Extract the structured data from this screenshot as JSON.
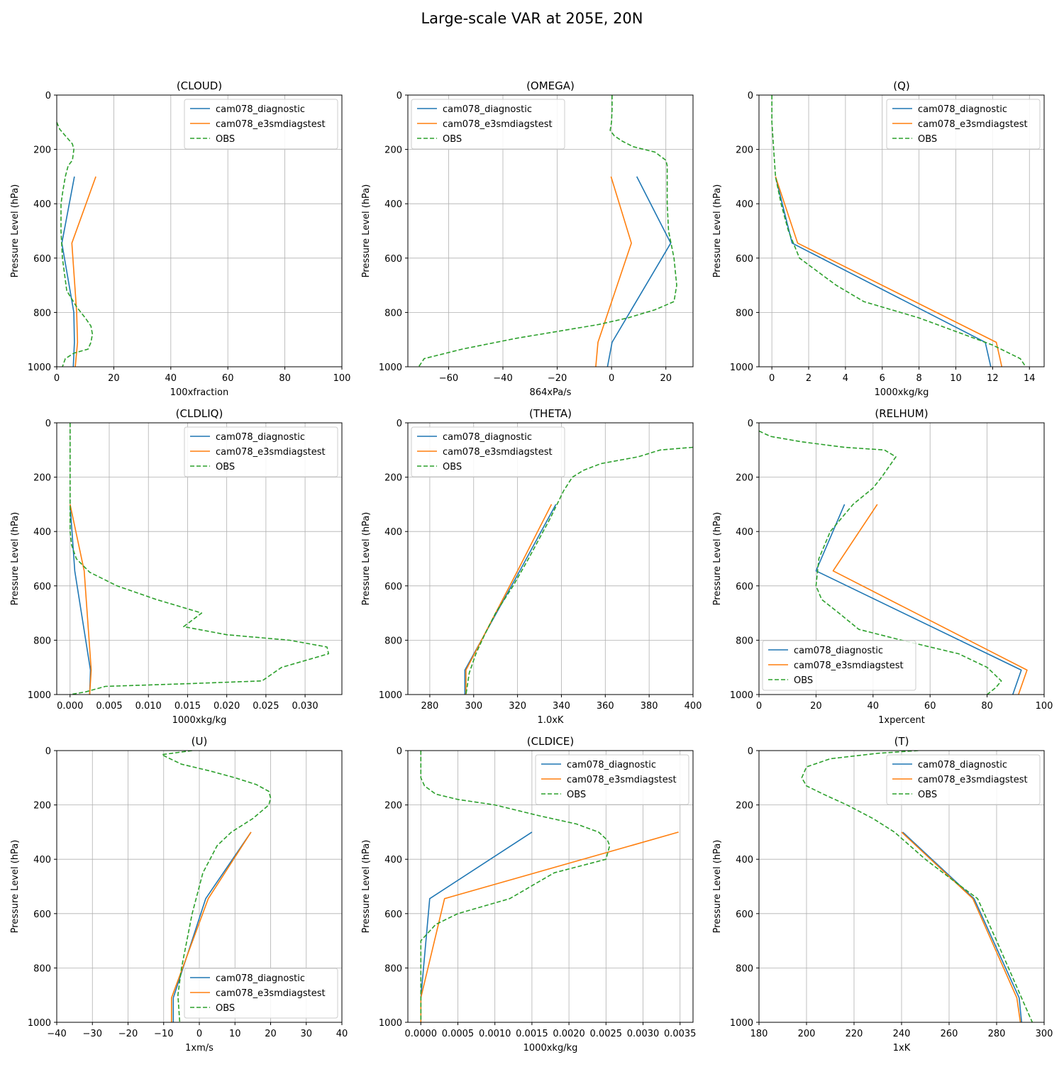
{
  "figure": {
    "title": "Large-scale VAR at 205E, 20N"
  },
  "colors": {
    "model1": "#1f77b4",
    "model2": "#ff7f0e",
    "obs": "#2ca02c",
    "grid": "#b0b0b0"
  },
  "chart_data": [
    {
      "type": "line",
      "title": "(CLOUD)",
      "xlabel": "100xfraction",
      "ylabel": "Pressure Level (hPa)",
      "xlim": [
        0,
        100
      ],
      "ylim": [
        1000,
        0
      ],
      "xticks": [
        0,
        20,
        40,
        60,
        80,
        100
      ],
      "yticks": [
        0,
        200,
        400,
        600,
        800,
        1000
      ],
      "grid": true,
      "legend": "top-right",
      "series": [
        {
          "name": "cam078_diagnostic",
          "style": "solid",
          "x": [
            6.2,
            1.8,
            6,
            6.2,
            5.8
          ],
          "y": [
            300,
            545,
            800,
            910,
            1000
          ]
        },
        {
          "name": "cam078_e3smdiagstest",
          "style": "solid",
          "x": [
            13.7,
            5.3,
            7,
            7.3,
            6.5
          ],
          "y": [
            300,
            545,
            800,
            910,
            1000
          ]
        },
        {
          "name": "OBS",
          "style": "dashed",
          "x": [
            0,
            1,
            3,
            5.5,
            6,
            5.5,
            4,
            3,
            2.2,
            1.5,
            1.5,
            2,
            3.5,
            7,
            10,
            12,
            12.5,
            12,
            11,
            6,
            3,
            2
          ],
          "y": [
            100,
            125,
            150,
            180,
            200,
            240,
            260,
            300,
            350,
            400,
            500,
            600,
            720,
            780,
            820,
            850,
            880,
            910,
            935,
            950,
            970,
            1000
          ]
        }
      ]
    },
    {
      "type": "line",
      "title": "(OMEGA)",
      "xlabel": "864xPa/s",
      "ylabel": "Pressure Level (hPa)",
      "xlim": [
        -75,
        30
      ],
      "ylim": [
        1000,
        0
      ],
      "xticks": [
        -60,
        -40,
        -20,
        0,
        20
      ],
      "yticks": [
        0,
        200,
        400,
        600,
        800,
        1000
      ],
      "grid": true,
      "legend": "top-left",
      "series": [
        {
          "name": "cam078_diagnostic",
          "style": "solid",
          "x": [
            9.3,
            21.8,
            0.2,
            -1.5
          ],
          "y": [
            300,
            545,
            910,
            1000
          ]
        },
        {
          "name": "cam078_e3smdiagstest",
          "style": "solid",
          "x": [
            -0.2,
            7.3,
            -5,
            -5.8
          ],
          "y": [
            300,
            545,
            910,
            1000
          ]
        },
        {
          "name": "OBS",
          "style": "dashed",
          "x": [
            0.2,
            0.2,
            0,
            -0.5,
            1,
            4,
            8,
            16,
            20,
            20.5,
            20.5,
            20.5,
            21,
            23,
            24,
            23,
            16,
            6,
            -5,
            -20,
            -35,
            -55,
            -69,
            -71
          ],
          "y": [
            0,
            50,
            100,
            130,
            150,
            170,
            190,
            210,
            240,
            260,
            300,
            400,
            500,
            600,
            700,
            760,
            790,
            820,
            845,
            870,
            895,
            935,
            970,
            1000
          ]
        }
      ]
    },
    {
      "type": "line",
      "title": "(Q)",
      "xlabel": "1000xkg/kg",
      "ylabel": "Pressure Level (hPa)",
      "xlim": [
        -0.7,
        14.8
      ],
      "ylim": [
        1000,
        0
      ],
      "xticks": [
        0,
        2,
        4,
        6,
        8,
        10,
        12,
        14
      ],
      "yticks": [
        0,
        200,
        400,
        600,
        800,
        1000
      ],
      "grid": true,
      "legend": "top-right",
      "series": [
        {
          "name": "cam078_diagnostic",
          "style": "solid",
          "x": [
            0.2,
            1.1,
            11.6,
            11.9
          ],
          "y": [
            300,
            545,
            910,
            1000
          ]
        },
        {
          "name": "cam078_e3smdiagstest",
          "style": "solid",
          "x": [
            0.2,
            1.4,
            12.2,
            12.5
          ],
          "y": [
            300,
            545,
            910,
            1000
          ]
        },
        {
          "name": "OBS",
          "style": "dashed",
          "x": [
            0,
            0,
            0.1,
            0.2,
            0.5,
            0.9,
            1.5,
            2.5,
            3.5,
            5,
            8,
            10,
            12,
            13.5,
            13.8
          ],
          "y": [
            0,
            100,
            200,
            300,
            400,
            500,
            600,
            650,
            700,
            760,
            820,
            870,
            920,
            970,
            1000
          ]
        }
      ]
    },
    {
      "type": "line",
      "title": "(CLDLIQ)",
      "xlabel": "1000xkg/kg",
      "ylabel": "Pressure Level (hPa)",
      "xlim": [
        -0.0017,
        0.0347
      ],
      "ylim": [
        1000,
        0
      ],
      "xticks": [
        0,
        0.005,
        0.01,
        0.015,
        0.02,
        0.025,
        0.03
      ],
      "xticklabels": [
        "0.000",
        "0.005",
        "0.010",
        "0.015",
        "0.020",
        "0.025",
        "0.030"
      ],
      "yticks": [
        0,
        200,
        400,
        600,
        800,
        1000
      ],
      "grid": true,
      "legend": "top-right",
      "series": [
        {
          "name": "cam078_diagnostic",
          "style": "solid",
          "x": [
            0,
            0.0006,
            0.0026,
            0.0025
          ],
          "y": [
            300,
            545,
            910,
            1000
          ]
        },
        {
          "name": "cam078_e3smdiagstest",
          "style": "solid",
          "x": [
            0,
            0.0018,
            0.0027,
            0.0025
          ],
          "y": [
            300,
            545,
            910,
            1000
          ]
        },
        {
          "name": "OBS",
          "style": "dashed",
          "x": [
            0,
            0,
            0,
            0,
            0.0002,
            0.0008,
            0.0025,
            0.006,
            0.011,
            0.0168,
            0.0145,
            0.02,
            0.028,
            0.0328,
            0.033,
            0.03,
            0.027,
            0.0245,
            0.015,
            0.0045,
            0.002,
            0
          ],
          "y": [
            0,
            200,
            300,
            400,
            450,
            500,
            550,
            600,
            650,
            700,
            750,
            780,
            800,
            825,
            850,
            875,
            900,
            950,
            960,
            970,
            990,
            1000
          ]
        }
      ]
    },
    {
      "type": "line",
      "title": "(THETA)",
      "xlabel": "1.0xK",
      "ylabel": "Pressure Level (hPa)",
      "xlim": [
        270,
        400
      ],
      "ylim": [
        1000,
        0
      ],
      "xticks": [
        280,
        300,
        320,
        340,
        360,
        380,
        400
      ],
      "yticks": [
        0,
        200,
        400,
        600,
        800,
        1000
      ],
      "grid": true,
      "legend": "top-left",
      "series": [
        {
          "name": "cam078_diagnostic",
          "style": "solid",
          "x": [
            337.5,
            321,
            296,
            296
          ],
          "y": [
            300,
            545,
            910,
            1000
          ]
        },
        {
          "name": "cam078_e3smdiagstest",
          "style": "solid",
          "x": [
            335.5,
            320,
            296.5,
            296.5
          ],
          "y": [
            300,
            545,
            910,
            1000
          ]
        },
        {
          "name": "OBS",
          "style": "dashed",
          "x": [
            400,
            385,
            375,
            358,
            350,
            345,
            341,
            335,
            325,
            318,
            310,
            305,
            301,
            298,
            296.5
          ],
          "y": [
            90,
            100,
            125,
            150,
            175,
            200,
            250,
            350,
            500,
            600,
            700,
            780,
            850,
            920,
            1000
          ]
        }
      ]
    },
    {
      "type": "line",
      "title": "(RELHUM)",
      "xlabel": "1xpercent",
      "ylabel": "Pressure Level (hPa)",
      "xlim": [
        0,
        100
      ],
      "ylim": [
        1000,
        0
      ],
      "xticks": [
        0,
        20,
        40,
        60,
        80,
        100
      ],
      "yticks": [
        0,
        200,
        400,
        600,
        800,
        1000
      ],
      "grid": true,
      "legend": "bottom-left",
      "series": [
        {
          "name": "cam078_diagnostic",
          "style": "solid",
          "x": [
            30,
            20,
            92,
            89
          ],
          "y": [
            300,
            545,
            910,
            1000
          ]
        },
        {
          "name": "cam078_e3smdiagstest",
          "style": "solid",
          "x": [
            41.5,
            26,
            94,
            91
          ],
          "y": [
            300,
            545,
            910,
            1000
          ]
        },
        {
          "name": "OBS",
          "style": "dashed",
          "x": [
            0,
            4,
            15,
            30,
            44,
            48,
            43,
            40,
            33,
            25,
            21,
            20,
            22,
            28,
            35,
            50,
            70,
            80,
            85,
            83,
            80
          ],
          "y": [
            30,
            50,
            70,
            90,
            100,
            125,
            200,
            240,
            300,
            400,
            500,
            600,
            650,
            700,
            760,
            800,
            850,
            900,
            950,
            975,
            1000
          ]
        }
      ]
    },
    {
      "type": "line",
      "title": "(U)",
      "xlabel": "1xm/s",
      "ylabel": "Pressure Level (hPa)",
      "xlim": [
        -40,
        40
      ],
      "ylim": [
        1000,
        0
      ],
      "xticks": [
        -40,
        -30,
        -20,
        -10,
        0,
        10,
        20,
        30,
        40
      ],
      "yticks": [
        0,
        200,
        400,
        600,
        800,
        1000
      ],
      "grid": true,
      "legend": "bottom-right",
      "series": [
        {
          "name": "cam078_diagnostic",
          "style": "solid",
          "x": [
            14.5,
            1.8,
            -7.3,
            -7.3
          ],
          "y": [
            300,
            545,
            910,
            1000
          ]
        },
        {
          "name": "cam078_e3smdiagstest",
          "style": "solid",
          "x": [
            14.5,
            2.5,
            -7.8,
            -7.8
          ],
          "y": [
            300,
            545,
            910,
            1000
          ]
        },
        {
          "name": "OBS",
          "style": "dashed",
          "x": [
            -2,
            -10.5,
            -9,
            -5,
            3,
            10,
            16,
            19.5,
            20,
            19.5,
            15,
            9,
            5,
            3,
            1,
            0,
            -2,
            -3.5,
            -5,
            -6,
            -5.5
          ],
          "y": [
            0,
            15,
            25,
            50,
            75,
            100,
            125,
            150,
            175,
            200,
            250,
            300,
            350,
            400,
            450,
            500,
            600,
            700,
            800,
            900,
            1000
          ]
        }
      ]
    },
    {
      "type": "line",
      "title": "(CLDICE)",
      "xlabel": "1000xkg/kg",
      "ylabel": "Pressure Level (hPa)",
      "xlim": [
        -0.000175,
        0.003675
      ],
      "ylim": [
        1000,
        0
      ],
      "xticks": [
        0,
        0.0005,
        0.001,
        0.0015,
        0.002,
        0.0025,
        0.003,
        0.0035
      ],
      "xticklabels": [
        "0.0000",
        "0.0005",
        "0.0010",
        "0.0015",
        "0.0020",
        "0.0025",
        "0.0030",
        "0.0035"
      ],
      "yticks": [
        0,
        200,
        400,
        600,
        800,
        1000
      ],
      "grid": true,
      "legend": "top-right",
      "series": [
        {
          "name": "cam078_diagnostic",
          "style": "solid",
          "x": [
            0.0015,
            0.00012,
            0,
            0
          ],
          "y": [
            300,
            545,
            910,
            1000
          ]
        },
        {
          "name": "cam078_e3smdiagstest",
          "style": "solid",
          "x": [
            0.00348,
            0.00032,
            0,
            0
          ],
          "y": [
            300,
            545,
            910,
            1000
          ]
        },
        {
          "name": "OBS",
          "style": "dashed",
          "x": [
            0,
            0,
            5e-05,
            0.0002,
            0.0005,
            0.001,
            0.0016,
            0.0021,
            0.0024,
            0.00252,
            0.00255,
            0.0025,
            0.0018,
            0.0012,
            0.0005,
            0.0002,
            0,
            0
          ],
          "y": [
            0,
            100,
            130,
            160,
            180,
            200,
            240,
            270,
            300,
            330,
            350,
            400,
            450,
            545,
            600,
            640,
            700,
            1000
          ]
        }
      ]
    },
    {
      "type": "line",
      "title": "(T)",
      "xlabel": "1xK",
      "ylabel": "Pressure Level (hPa)",
      "xlim": [
        180,
        300
      ],
      "ylim": [
        1000,
        0
      ],
      "xticks": [
        180,
        200,
        220,
        240,
        260,
        280,
        300
      ],
      "yticks": [
        0,
        200,
        400,
        600,
        800,
        1000
      ],
      "grid": true,
      "legend": "top-right",
      "series": [
        {
          "name": "cam078_diagnostic",
          "style": "solid",
          "x": [
            240.5,
            270.5,
            289.5,
            290.5
          ],
          "y": [
            300,
            545,
            910,
            1000
          ]
        },
        {
          "name": "cam078_e3smdiagstest",
          "style": "solid",
          "x": [
            240,
            270,
            288.5,
            290
          ],
          "y": [
            300,
            545,
            910,
            1000
          ]
        },
        {
          "name": "OBS",
          "style": "dashed",
          "x": [
            247,
            230,
            210,
            200,
            198,
            200,
            207,
            217,
            228,
            237,
            250,
            262,
            272,
            280,
            285,
            290,
            295
          ],
          "y": [
            0,
            10,
            30,
            60,
            100,
            130,
            160,
            200,
            250,
            300,
            400,
            480,
            545,
            700,
            800,
            900,
            1000
          ]
        }
      ]
    }
  ]
}
